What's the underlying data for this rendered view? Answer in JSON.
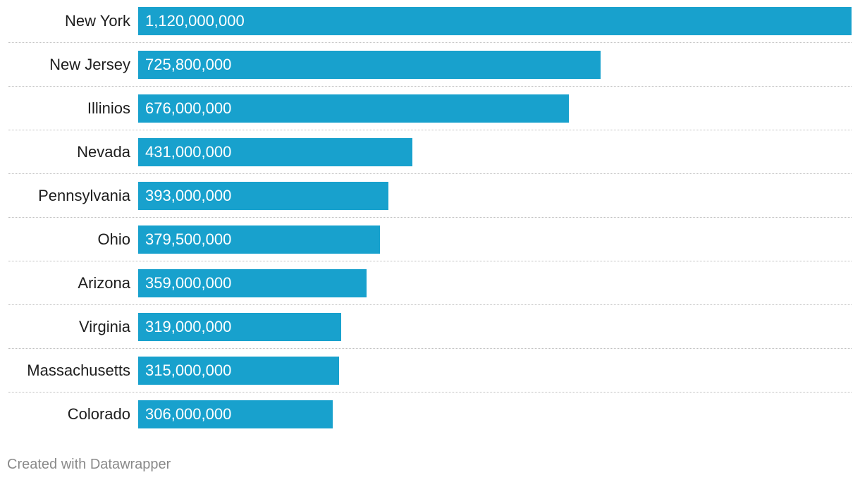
{
  "chart_data": {
    "type": "bar",
    "orientation": "horizontal",
    "categories": [
      "New York",
      "New Jersey",
      "Illinios",
      "Nevada",
      "Pennsylvania",
      "Ohio",
      "Arizona",
      "Virginia",
      "Massachusetts",
      "Colorado"
    ],
    "values": [
      1120000000,
      725800000,
      676000000,
      431000000,
      393000000,
      379500000,
      359000000,
      319000000,
      315000000,
      306000000
    ],
    "value_labels": [
      "1,120,000,000",
      "725,800,000",
      "676,000,000",
      "431,000,000",
      "393,000,000",
      "379,500,000",
      "359,000,000",
      "319,000,000",
      "315,000,000",
      "306,000,000"
    ],
    "xlim": [
      0,
      1120000000
    ],
    "grid": false,
    "bar_color": "#18a1cd"
  },
  "footer": {
    "credit": "Created with Datawrapper"
  }
}
